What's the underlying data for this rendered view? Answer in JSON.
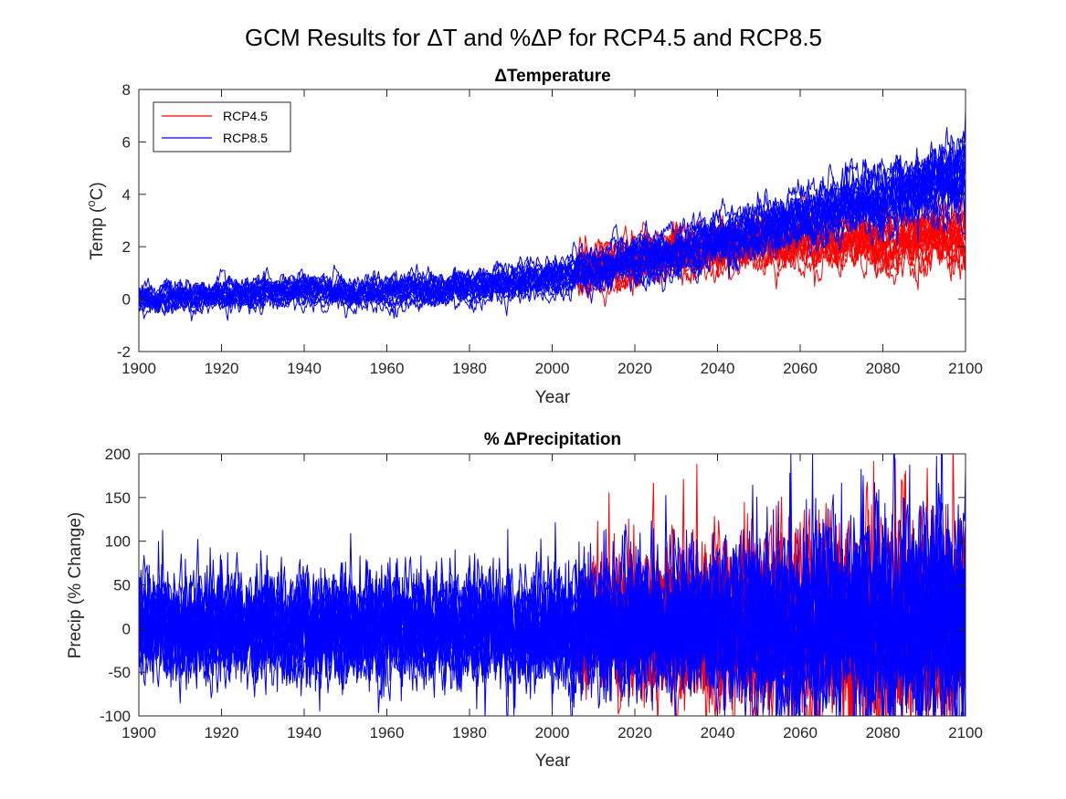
{
  "figure": {
    "title": "GCM Results for ΔT and %ΔP for RCP4.5 and RCP8.5"
  },
  "colors": {
    "rcp45": "#ff0000",
    "rcp85": "#0000ff"
  },
  "chart_data": [
    {
      "type": "line",
      "title": "ΔTemperature",
      "xlabel": "Year",
      "ylabel": "Temp (°C)",
      "xlim": [
        1900,
        2100
      ],
      "ylim": [
        -2,
        8
      ],
      "xticks": [
        1900,
        1920,
        1940,
        1960,
        1980,
        2000,
        2020,
        2040,
        2060,
        2080,
        2100
      ],
      "yticks": [
        -2,
        0,
        2,
        4,
        6,
        8
      ],
      "grid": false,
      "legend": {
        "placement": "top-left",
        "entries": [
          "RCP4.5",
          "RCP8.5"
        ]
      },
      "series": [
        {
          "name": "RCP4.5",
          "color": "#ff0000",
          "member_count": 18,
          "x": [
            2006,
            2020,
            2040,
            2060,
            2080,
            2100
          ],
          "ensemble_mean": [
            1.0,
            1.4,
            1.9,
            2.3,
            2.3,
            2.4
          ],
          "ensemble_spread": [
            0.8,
            0.8,
            0.9,
            1.0,
            1.0,
            1.1
          ]
        },
        {
          "name": "RCP8.5",
          "color": "#0000ff",
          "member_count": 20,
          "x": [
            1900,
            1920,
            1940,
            1960,
            1980,
            2000,
            2020,
            2040,
            2060,
            2080,
            2100
          ],
          "ensemble_mean": [
            0.0,
            0.15,
            0.35,
            0.25,
            0.4,
            0.75,
            1.45,
            2.2,
            3.0,
            3.8,
            4.6
          ],
          "ensemble_spread": [
            0.5,
            0.5,
            0.55,
            0.55,
            0.6,
            0.65,
            0.8,
            0.9,
            1.0,
            1.2,
            1.5
          ]
        }
      ]
    },
    {
      "type": "line",
      "title": "% ΔPrecipitation",
      "xlabel": "Year",
      "ylabel": "Precip (% Change)",
      "xlim": [
        1900,
        2100
      ],
      "ylim": [
        -100,
        200
      ],
      "xticks": [
        1900,
        1920,
        1940,
        1960,
        1980,
        2000,
        2020,
        2040,
        2060,
        2080,
        2100
      ],
      "yticks": [
        -100,
        -50,
        0,
        50,
        100,
        150,
        200
      ],
      "grid": false,
      "series": [
        {
          "name": "RCP4.5",
          "color": "#ff0000",
          "member_count": 18,
          "x": [
            2006,
            2020,
            2040,
            2060,
            2080,
            2100
          ],
          "ensemble_mean": [
            0,
            2,
            3,
            5,
            6,
            6
          ],
          "ensemble_spread": [
            30,
            35,
            40,
            45,
            50,
            50
          ]
        },
        {
          "name": "RCP8.5",
          "color": "#0000ff",
          "member_count": 20,
          "x": [
            1900,
            1920,
            1940,
            1960,
            1980,
            2000,
            2020,
            2040,
            2060,
            2080,
            2100
          ],
          "ensemble_mean": [
            0,
            0,
            0,
            0,
            0,
            0,
            2,
            4,
            6,
            8,
            10
          ],
          "ensemble_spread": [
            28,
            28,
            28,
            28,
            28,
            30,
            34,
            38,
            44,
            50,
            55
          ]
        }
      ]
    }
  ]
}
